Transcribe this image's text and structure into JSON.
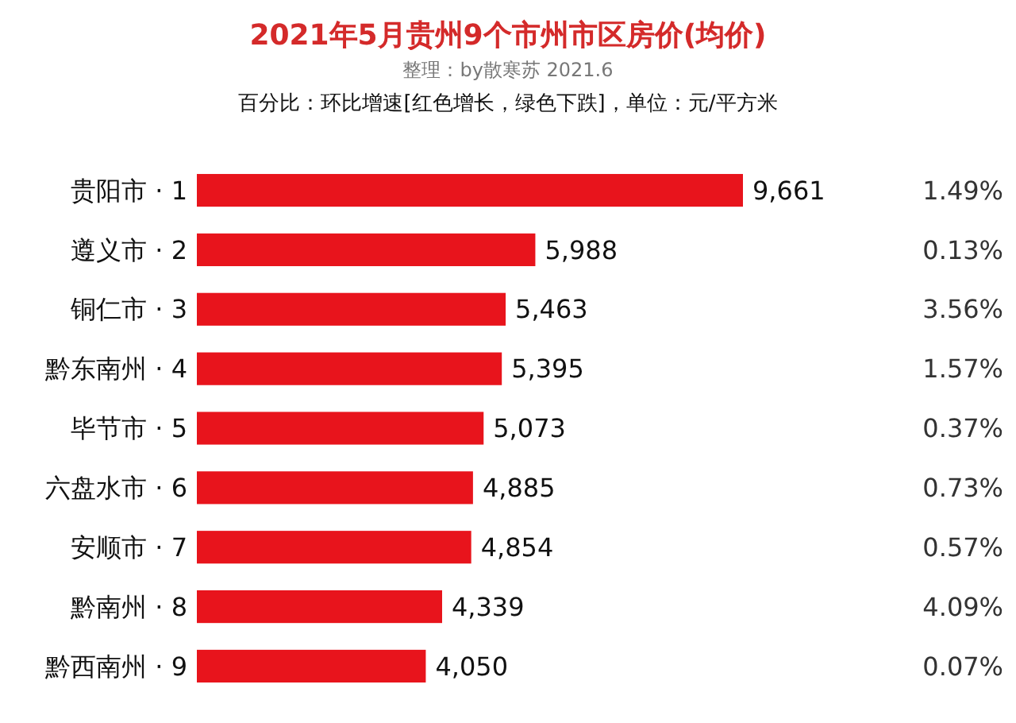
{
  "chart_data": {
    "type": "bar",
    "orientation": "horizontal",
    "title": "2021年5月贵州9个市州市区房价(均价)",
    "subtitle": "整理：by散寒苏 2021.6",
    "categories": [
      "贵阳市 · 1",
      "遵义市 · 2",
      "铜仁市 · 3",
      "黔东南州 · 4",
      "毕节市 · 5",
      "六盘水市 · 6",
      "安顺市 · 7",
      "黔南州 · 8",
      "黔西南州 · 9"
    ],
    "series": [
      {
        "values": [
          9661,
          5988,
          5463,
          5395,
          5073,
          4885,
          4854,
          4339,
          4050
        ],
        "color": "#e8141c",
        "value_labels": [
          "9,661",
          "5,988",
          "5,463",
          "5,395",
          "5,073",
          "4,885",
          "4,854",
          "4,339",
          "4,050"
        ]
      }
    ],
    "annotations": [
      "百分比：环比增速[红色增长，绿色下跌]，单位：元/平方米",
      "1.49%",
      "0.13%",
      "3.56%",
      "1.57%",
      "0.37%",
      "0.73%",
      "0.57%",
      "4.09%",
      "0.07%"
    ]
  }
}
